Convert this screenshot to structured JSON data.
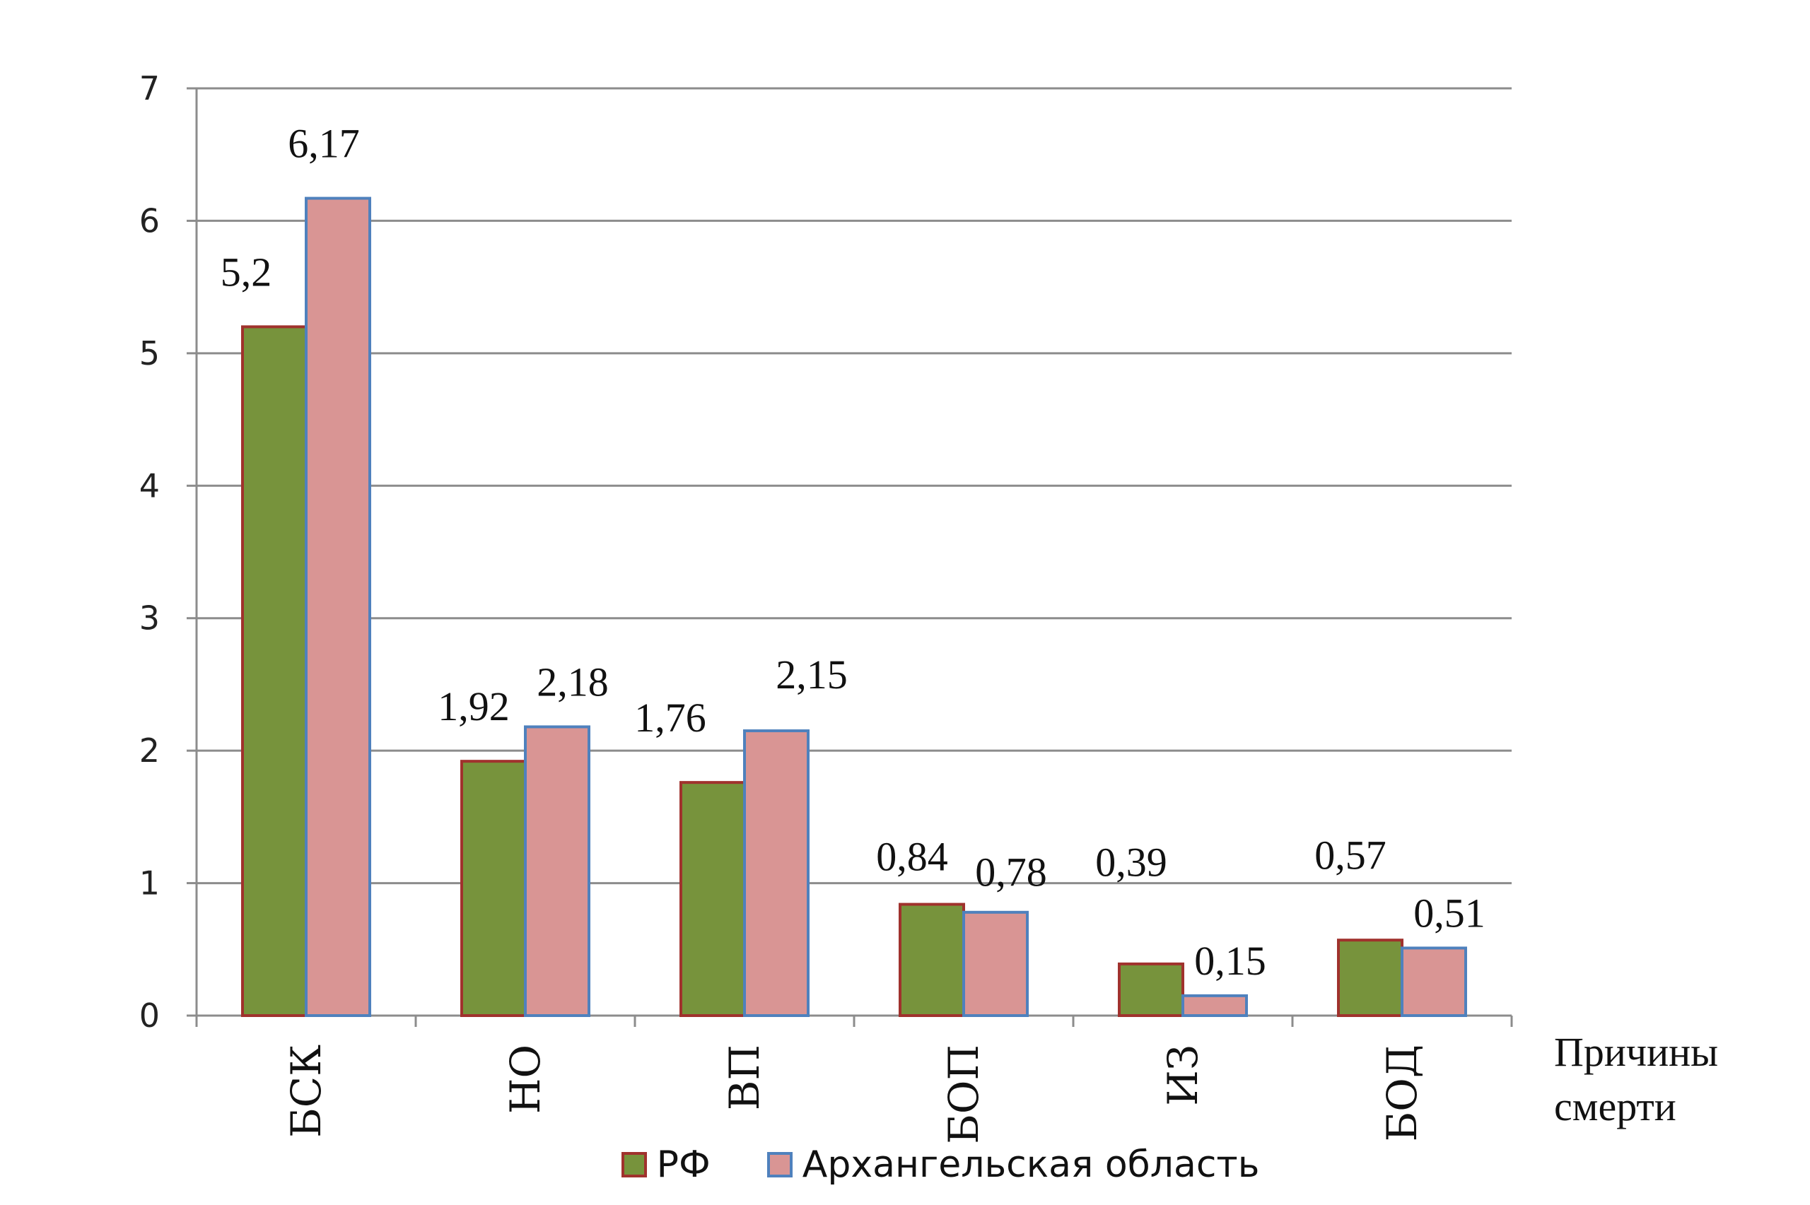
{
  "chart_data": {
    "type": "bar",
    "categories": [
      "БСК",
      "НО",
      "ВП",
      "БОП",
      "ИЗ",
      "БОД"
    ],
    "series": [
      {
        "name": "РФ",
        "values": [
          5.2,
          1.92,
          1.76,
          0.84,
          0.39,
          0.57
        ],
        "labels": [
          "5,2",
          "1,92",
          "1,76",
          "0,84",
          "0,39",
          "0,57"
        ],
        "color": "#77933c",
        "border": "#a0322d"
      },
      {
        "name": "Архангельская область",
        "values": [
          6.17,
          2.18,
          2.15,
          0.78,
          0.15,
          0.51
        ],
        "labels": [
          "6,17",
          "2,18",
          "2,15",
          "0,78",
          "0,15",
          "0,51"
        ],
        "color": "#d99594",
        "border": "#4f81bd"
      }
    ],
    "y_ticks": [
      "0",
      "1",
      "2",
      "3",
      "4",
      "5",
      "6",
      "7"
    ],
    "ylim": [
      0,
      7
    ],
    "xlabel_lines": [
      "Причины",
      "смерти"
    ],
    "ylabel": "",
    "title": "",
    "grid": true,
    "legend": "bottom"
  }
}
